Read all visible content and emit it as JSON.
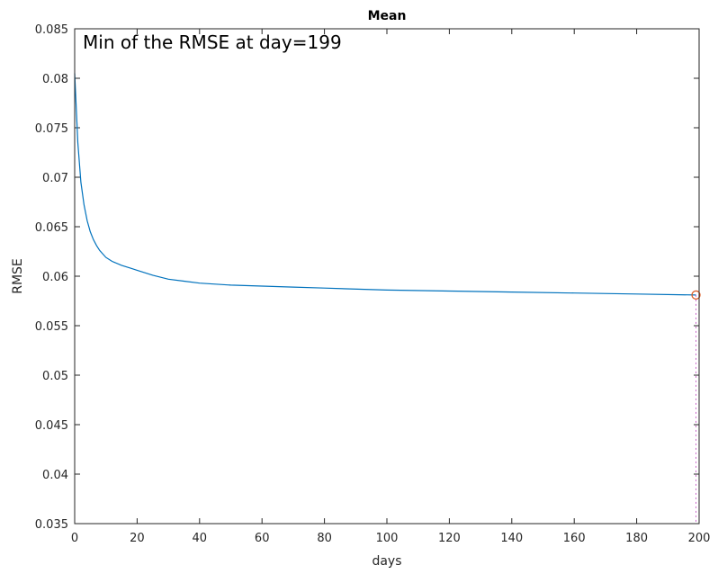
{
  "chart_data": {
    "type": "line",
    "title": "Mean",
    "xlabel": "days",
    "ylabel": "RMSE",
    "xlim": [
      0,
      200
    ],
    "ylim": [
      0.035,
      0.085
    ],
    "xticks": [
      0,
      20,
      40,
      60,
      80,
      100,
      120,
      140,
      160,
      180,
      200
    ],
    "yticks": [
      0.035,
      0.04,
      0.045,
      0.05,
      0.055,
      0.06,
      0.065,
      0.07,
      0.075,
      0.08,
      0.085
    ],
    "xtick_labels": [
      "0",
      "20",
      "40",
      "60",
      "80",
      "100",
      "120",
      "140",
      "160",
      "180",
      "200"
    ],
    "ytick_labels": [
      "0.035",
      "0.04",
      "0.045",
      "0.05",
      "0.055",
      "0.06",
      "0.065",
      "0.07",
      "0.075",
      "0.08",
      "0.085"
    ],
    "grid": false,
    "annotation": "Min of the RMSE at day=199",
    "series": [
      {
        "color": "#0072BD",
        "x": [
          0,
          1,
          2,
          3,
          4,
          5,
          6,
          7,
          8,
          10,
          12,
          15,
          18,
          20,
          25,
          30,
          35,
          40,
          50,
          60,
          70,
          80,
          100,
          120,
          140,
          160,
          180,
          199
        ],
        "y": [
          0.0805,
          0.0735,
          0.0695,
          0.0672,
          0.0656,
          0.0645,
          0.0637,
          0.0631,
          0.0626,
          0.0619,
          0.0615,
          0.0611,
          0.0608,
          0.0606,
          0.0601,
          0.0597,
          0.0595,
          0.0593,
          0.0591,
          0.059,
          0.0589,
          0.0588,
          0.0586,
          0.0585,
          0.0584,
          0.0583,
          0.0582,
          0.0581
        ]
      }
    ],
    "min_marker": {
      "x": 199,
      "y": 0.0581,
      "color": "#D95319",
      "guide_color": "#CC66CC"
    }
  }
}
